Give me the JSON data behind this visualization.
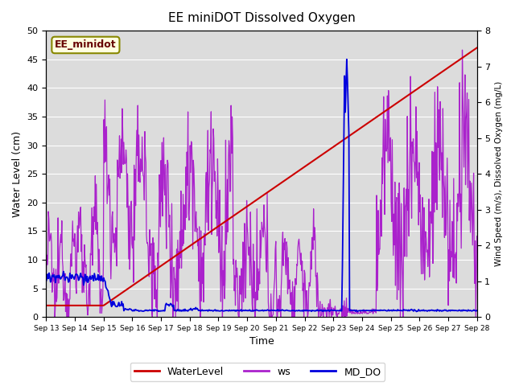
{
  "title": "EE miniDOT Dissolved Oxygen",
  "xlabel": "Time",
  "ylabel_left": "Water Level (cm)",
  "ylabel_right": "Wind Speed (m/s), Dissolved Oxygen (mg/L)",
  "annotation": "EE_minidot",
  "left_ylim": [
    0,
    50
  ],
  "right_ylim": [
    0.0,
    8.0
  ],
  "left_yticks": [
    0,
    5,
    10,
    15,
    20,
    25,
    30,
    35,
    40,
    45,
    50
  ],
  "right_yticks": [
    0.0,
    1.0,
    2.0,
    3.0,
    4.0,
    5.0,
    6.0,
    7.0,
    8.0
  ],
  "xtick_labels": [
    "Sep 13",
    "Sep 14",
    "Sep 15",
    "Sep 16",
    "Sep 17",
    "Sep 18",
    "Sep 19",
    "Sep 20",
    "Sep 21",
    "Sep 22",
    "Sep 23",
    "Sep 24",
    "Sep 25",
    "Sep 26",
    "Sep 27",
    "Sep 28"
  ],
  "water_level_color": "#cc0000",
  "ws_color": "#aa22cc",
  "md_do_color": "#0000dd",
  "background_color": "#e8e8e8",
  "plot_bg_color": "#dcdcdc",
  "legend_entries": [
    "WaterLevel",
    "ws",
    "MD_DO"
  ],
  "legend_colors": [
    "#cc0000",
    "#aa22cc",
    "#0000dd"
  ]
}
